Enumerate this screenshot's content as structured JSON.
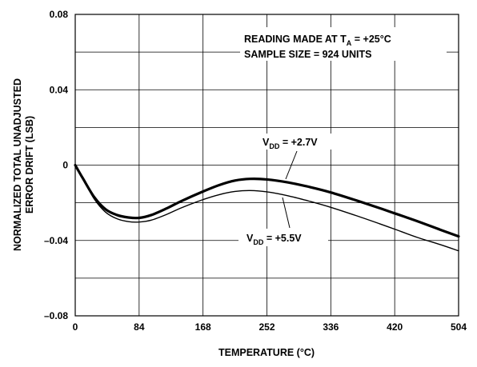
{
  "chart_data": {
    "type": "line",
    "title": "",
    "xlabel": "TEMPERATURE (°C)",
    "ylabel_line1": "NORMALIZED TOTAL UNADJUSTED",
    "ylabel_line2": "ERROR DRIFT (LSB)",
    "xlim": [
      0,
      504
    ],
    "ylim": [
      -0.08,
      0.08
    ],
    "x_ticks": [
      0,
      84,
      168,
      252,
      336,
      420,
      504
    ],
    "x_tick_labels": [
      "0",
      "84",
      "168",
      "252",
      "336",
      "420",
      "504"
    ],
    "y_ticks": [
      -0.08,
      -0.04,
      0,
      0.04,
      0.08
    ],
    "y_tick_labels": [
      "–0.08",
      "–0.04",
      "0",
      "0.04",
      "0.08"
    ],
    "grid": true,
    "series": [
      {
        "name": "VDD = +2.7V",
        "x": [
          0,
          10,
          25,
          40,
          55,
          70,
          84,
          100,
          120,
          140,
          168,
          190,
          210,
          230,
          252,
          280,
          310,
          336,
          370,
          400,
          420,
          450,
          480,
          504
        ],
        "y": [
          0,
          -0.007,
          -0.017,
          -0.0235,
          -0.0265,
          -0.0278,
          -0.028,
          -0.0265,
          -0.023,
          -0.019,
          -0.014,
          -0.0105,
          -0.0082,
          -0.0073,
          -0.0076,
          -0.0092,
          -0.0118,
          -0.0145,
          -0.0188,
          -0.0228,
          -0.0256,
          -0.0298,
          -0.0343,
          -0.0378
        ]
      },
      {
        "name": "VDD = +5.5V",
        "x": [
          0,
          10,
          25,
          40,
          55,
          70,
          84,
          100,
          120,
          140,
          168,
          190,
          210,
          230,
          252,
          280,
          310,
          336,
          370,
          400,
          420,
          450,
          480,
          504
        ],
        "y": [
          0,
          -0.007,
          -0.018,
          -0.025,
          -0.0285,
          -0.03,
          -0.0302,
          -0.0292,
          -0.0262,
          -0.0226,
          -0.0183,
          -0.0156,
          -0.014,
          -0.0135,
          -0.0142,
          -0.0163,
          -0.0194,
          -0.0224,
          -0.0269,
          -0.0311,
          -0.034,
          -0.0384,
          -0.0422,
          -0.0455
        ]
      }
    ],
    "annotations": {
      "reading": {
        "prefix": "READING MADE AT T",
        "sub": "A",
        "suffix": " = +25°C"
      },
      "sample": "SAMPLE SIZE = 924 UNITS",
      "vdd27": {
        "prefix": "V",
        "sub": "DD",
        "suffix": " = +2.7V"
      },
      "vdd55": {
        "prefix": "V",
        "sub": "DD",
        "suffix": " = +5.5V"
      }
    }
  }
}
